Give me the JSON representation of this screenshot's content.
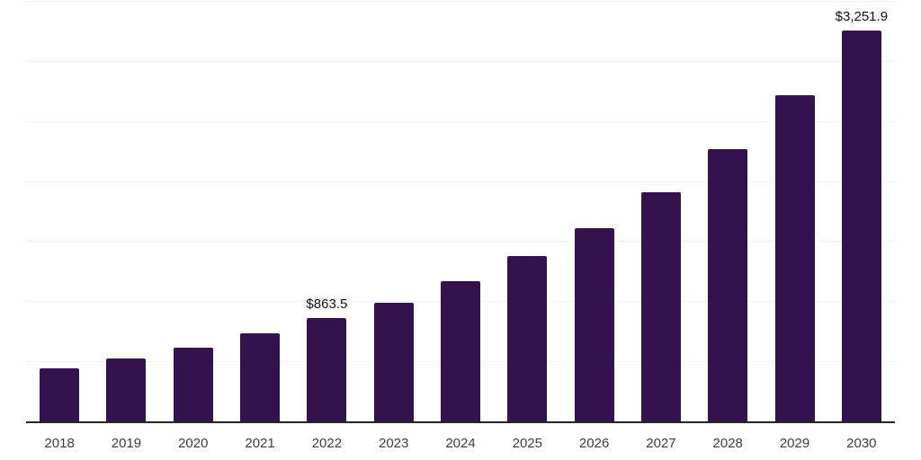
{
  "page": {
    "background_color": "#ffffff"
  },
  "chart_data": {
    "type": "bar",
    "title": "",
    "xlabel": "",
    "ylabel": "",
    "categories": [
      "2018",
      "2019",
      "2020",
      "2021",
      "2022",
      "2023",
      "2024",
      "2025",
      "2026",
      "2027",
      "2028",
      "2029",
      "2030"
    ],
    "values": [
      439,
      524,
      616,
      733,
      863.5,
      990,
      1169,
      1374,
      1608,
      1905,
      2268,
      2715,
      3251.9
    ],
    "data_labels": [
      {
        "index": 4,
        "text": "$863.5"
      },
      {
        "index": 12,
        "text": "$3,251.9"
      }
    ],
    "ylim": [
      0,
      3500
    ],
    "grid": true,
    "grid_step": 500,
    "legend_position": "none",
    "bar_color": "#34124D",
    "gridline_color": "#f2f2f2",
    "axis_line_color": "#262626",
    "tick_label_color": "#3d3d3d",
    "data_label_color": "#111111"
  }
}
